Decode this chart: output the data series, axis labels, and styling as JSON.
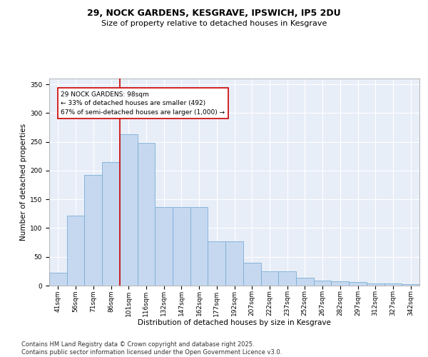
{
  "title_line1": "29, NOCK GARDENS, KESGRAVE, IPSWICH, IP5 2DU",
  "title_line2": "Size of property relative to detached houses in Kesgrave",
  "xlabel": "Distribution of detached houses by size in Kesgrave",
  "ylabel": "Number of detached properties",
  "categories": [
    "41sqm",
    "56sqm",
    "71sqm",
    "86sqm",
    "101sqm",
    "116sqm",
    "132sqm",
    "147sqm",
    "162sqm",
    "177sqm",
    "192sqm",
    "207sqm",
    "222sqm",
    "237sqm",
    "252sqm",
    "267sqm",
    "282sqm",
    "297sqm",
    "312sqm",
    "327sqm",
    "342sqm"
  ],
  "values": [
    22,
    122,
    193,
    215,
    263,
    248,
    137,
    136,
    136,
    77,
    77,
    40,
    25,
    25,
    14,
    9,
    8,
    6,
    4,
    4,
    2
  ],
  "bar_color": "#c5d8f0",
  "bar_edge_color": "#7aadd4",
  "vline_x": 4,
  "vline_color": "#cc0000",
  "annotation_text": "29 NOCK GARDENS: 98sqm\n← 33% of detached houses are smaller (492)\n67% of semi-detached houses are larger (1,000) →",
  "annotation_box_color": "#ffffff",
  "annotation_box_edge_color": "#cc0000",
  "ylim": [
    0,
    360
  ],
  "yticks": [
    0,
    50,
    100,
    150,
    200,
    250,
    300,
    350
  ],
  "background_color": "#e8eef8",
  "footer_text": "Contains HM Land Registry data © Crown copyright and database right 2025.\nContains public sector information licensed under the Open Government Licence v3.0.",
  "title_fontsize": 9,
  "subtitle_fontsize": 8,
  "axis_label_fontsize": 7.5,
  "tick_fontsize": 6.5,
  "annotation_fontsize": 6.5,
  "footer_fontsize": 6
}
